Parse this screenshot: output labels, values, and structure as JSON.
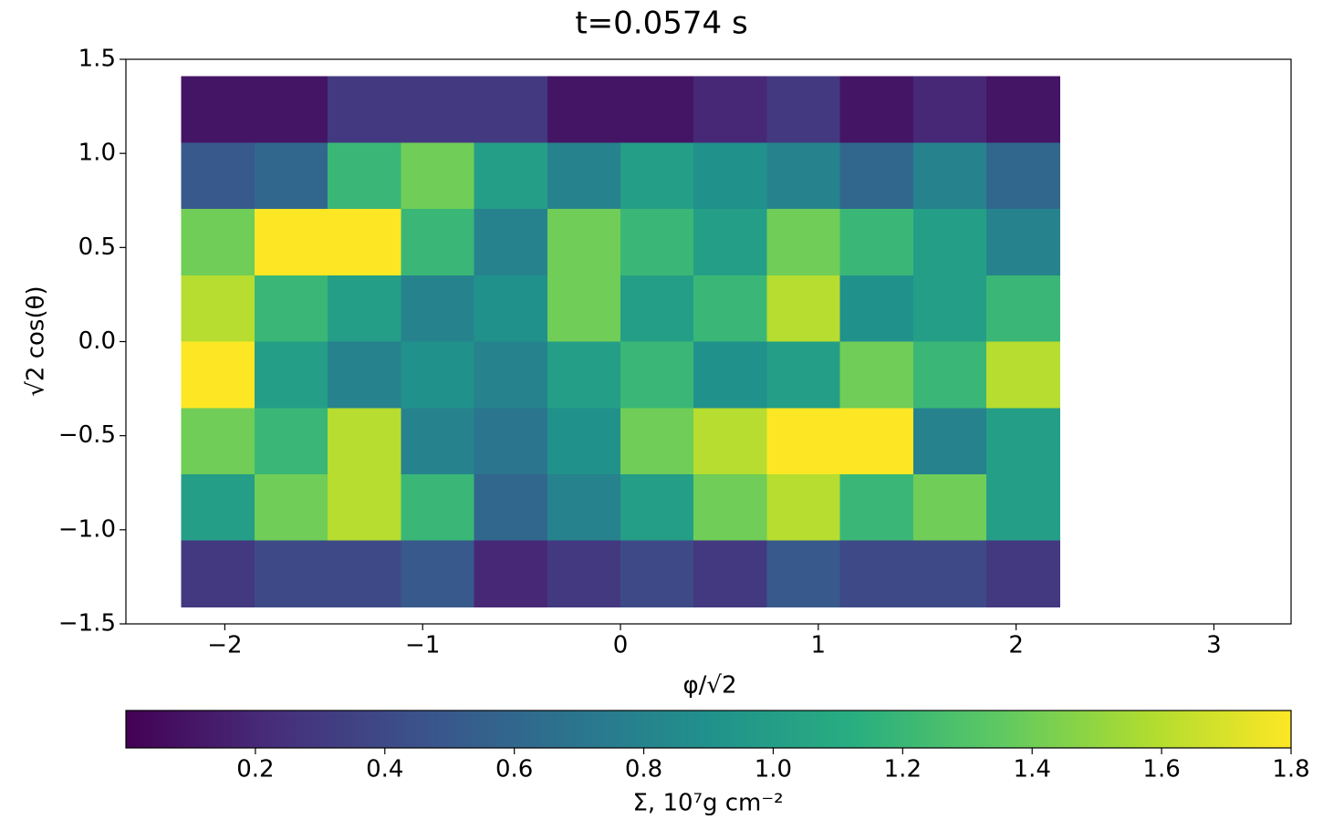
{
  "chart_data": {
    "type": "heatmap",
    "title": "t=0.0574 s",
    "x_label": "φ/√2",
    "y_label": "√2 cos(θ)",
    "xlim": [
      -2.5,
      3.39
    ],
    "ylim": [
      -1.5,
      1.5
    ],
    "xticks": [
      {
        "value": -2,
        "label": "−2"
      },
      {
        "value": -1,
        "label": "−1"
      },
      0,
      1,
      2,
      3
    ],
    "yticks": [
      {
        "value": -1.5,
        "label": "−1.5"
      },
      {
        "value": -1.0,
        "label": "−1.0"
      },
      {
        "value": -0.5,
        "label": "−0.5"
      },
      {
        "value": 0.0,
        "label": "0.0"
      },
      0.5,
      {
        "value": 1.0,
        "label": "1.0"
      },
      1.5
    ],
    "x": [
      -2.035,
      -1.665,
      -1.295,
      -0.925,
      -0.555,
      -0.185,
      0.185,
      0.555,
      0.925,
      1.295,
      1.665,
      2.035
    ],
    "y": [
      1.234,
      0.881,
      0.529,
      0.176,
      -0.176,
      -0.529,
      -0.881,
      -1.234
    ],
    "z": [
      [
        0.1,
        0.1,
        0.3,
        0.3,
        0.3,
        0.1,
        0.1,
        0.2,
        0.3,
        0.1,
        0.2,
        0.1
      ],
      [
        0.5,
        0.6,
        1.2,
        1.4,
        1.0,
        0.8,
        1.0,
        0.9,
        0.8,
        0.6,
        0.8,
        0.6
      ],
      [
        1.4,
        1.8,
        1.8,
        1.2,
        0.8,
        1.4,
        1.2,
        1.0,
        1.4,
        1.2,
        1.0,
        0.8
      ],
      [
        1.6,
        1.2,
        1.0,
        0.8,
        0.9,
        1.4,
        1.0,
        1.2,
        1.6,
        0.9,
        1.0,
        1.2
      ],
      [
        1.8,
        1.0,
        0.8,
        0.9,
        0.8,
        1.0,
        1.2,
        0.9,
        1.0,
        1.4,
        1.2,
        1.6
      ],
      [
        1.4,
        1.2,
        1.6,
        0.8,
        0.7,
        0.9,
        1.4,
        1.6,
        1.8,
        1.8,
        0.8,
        1.0
      ],
      [
        1.0,
        1.4,
        1.6,
        1.2,
        0.6,
        0.8,
        1.0,
        1.4,
        1.6,
        1.2,
        1.4,
        1.0
      ],
      [
        0.3,
        0.4,
        0.4,
        0.5,
        0.2,
        0.3,
        0.4,
        0.3,
        0.5,
        0.4,
        0.4,
        0.3
      ]
    ],
    "colormap": "viridis",
    "clim": [
      0,
      1.8
    ],
    "colorbar_ticks": [
      0.2,
      0.4,
      0.6,
      0.8,
      {
        "value": 1.0,
        "label": "1.0"
      },
      1.2,
      1.4,
      1.6,
      1.8
    ],
    "colorbar_label": "Σ, 10⁷g cm⁻²"
  }
}
